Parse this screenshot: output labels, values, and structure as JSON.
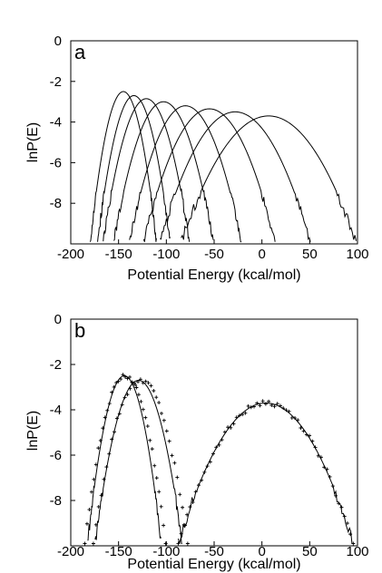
{
  "chart_data": [
    {
      "panel": "a",
      "type": "line",
      "xlabel": "Potential Energy (kcal/mol)",
      "ylabel": "lnP(E)",
      "xlim": [
        -200,
        100
      ],
      "ylim": [
        -10,
        0
      ],
      "xticks": [
        -200,
        -150,
        -100,
        -50,
        0,
        50,
        100
      ],
      "yticks": [
        0,
        -2,
        -4,
        -6,
        -8
      ],
      "grid": false,
      "series": [
        {
          "center": -145,
          "peak": -2.5,
          "width": 9
        },
        {
          "center": -134,
          "peak": -2.7,
          "width": 10
        },
        {
          "center": -121,
          "peak": -2.85,
          "width": 12
        },
        {
          "center": -103,
          "peak": -3.0,
          "width": 14
        },
        {
          "center": -80,
          "peak": -3.2,
          "width": 16
        },
        {
          "center": -55,
          "peak": -3.35,
          "width": 19
        },
        {
          "center": -28,
          "peak": -3.5,
          "width": 22
        },
        {
          "center": 7,
          "peak": -3.7,
          "width": 26
        }
      ]
    },
    {
      "panel": "b",
      "type": "line",
      "xlabel": "Potential Energy (kcal/mol)",
      "ylabel": "lnP(E)",
      "xlim": [
        -200,
        100
      ],
      "ylim": [
        -10,
        0
      ],
      "xticks": [
        -200,
        -150,
        -100,
        -50,
        0,
        50,
        100
      ],
      "yticks": [
        0,
        -2,
        -4,
        -6,
        -8
      ],
      "grid": false,
      "lines": [
        {
          "center": -144,
          "peak": -2.5,
          "width": 10
        },
        {
          "center": -129,
          "peak": -2.7,
          "width": 12
        },
        {
          "center": 4,
          "peak": -3.7,
          "width": 26
        }
      ],
      "points": [
        {
          "center": -143,
          "peak": -2.5,
          "width": 11
        },
        {
          "center": -127,
          "peak": -2.7,
          "width": 13
        },
        {
          "center": 4,
          "peak": -3.7,
          "width": 26
        }
      ]
    }
  ]
}
